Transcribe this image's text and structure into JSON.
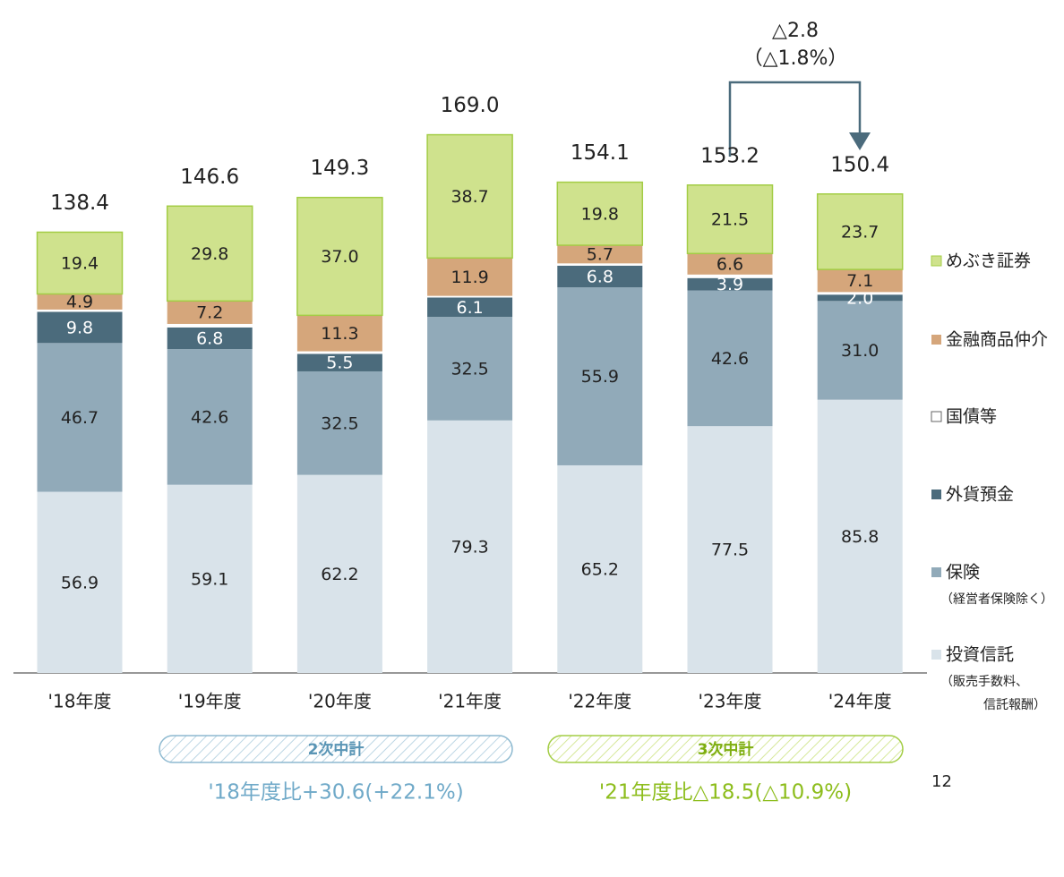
{
  "chart_data": {
    "type": "stacked_bar",
    "categories": [
      "'18年度",
      "'19年度",
      "'20年度",
      "'21年度",
      "'22年度",
      "'23年度",
      "'24年度"
    ],
    "series": [
      {
        "name": "投資信託",
        "legend_note": [
          "（販売手数料、",
          "信託報酬）"
        ],
        "color": "#d9e3ea",
        "label_color": "#222222",
        "values": [
          56.9,
          59.1,
          62.2,
          79.3,
          65.2,
          77.5,
          85.8
        ]
      },
      {
        "name": "保険",
        "legend_note": [
          "（経営者保険除く）"
        ],
        "color": "#91aab9",
        "label_color": "#222222",
        "values": [
          46.7,
          42.6,
          32.5,
          32.5,
          55.9,
          42.6,
          31.0
        ],
        "value_labels": [
          "46.7",
          "42.6",
          "32.5",
          "32.5",
          "55.9",
          "42.6",
          "31.0"
        ]
      },
      {
        "name": "外貨預金",
        "color": "#4b6b7c",
        "label_color": "#ffffff",
        "values": [
          9.8,
          6.8,
          5.5,
          6.1,
          6.8,
          3.9,
          2.0
        ],
        "value_labels": [
          "9.8",
          "6.8",
          "5.5",
          "6.1",
          "6.8",
          "3.9",
          "2.0"
        ]
      },
      {
        "name": "国債等",
        "color": "#ffffff",
        "label_color": null,
        "values": [
          0.7,
          1.1,
          0.8,
          0.5,
          0.7,
          1.1,
          0.8
        ]
      },
      {
        "name": "金融商品仲介",
        "color": "#d5a67b",
        "label_color": "#222222",
        "values": [
          4.9,
          7.2,
          11.3,
          11.9,
          5.7,
          6.6,
          7.1
        ]
      },
      {
        "name": "めぶき証券",
        "color": "#cfe28d",
        "stroke": "#a3cd45",
        "label_color": "#222222",
        "values": [
          19.4,
          29.8,
          37.0,
          38.7,
          19.8,
          21.5,
          23.7
        ],
        "value_labels": [
          "19.4",
          "29.8",
          "37.0",
          "38.7",
          "19.8",
          "21.5",
          "23.7"
        ]
      }
    ],
    "totals": {
      "values": [
        138.4,
        146.6,
        149.3,
        169.0,
        154.1,
        153.2,
        150.4
      ],
      "value_labels": [
        "138.4",
        "146.6",
        "149.3",
        "169.0",
        "154.1",
        "153.2",
        "150.4"
      ]
    },
    "ylim": [
      0,
      170
    ],
    "annotation": [
      "△2.8",
      "（△1.8%）"
    ],
    "plans": [
      {
        "label": "2次中計",
        "note": "'18年度比+30.6(+22.1%)",
        "color": "#6fa9c8"
      },
      {
        "label": "3次中計",
        "note": "'21年度比△18.5(△10.9%)",
        "color": "#8dbd1c"
      }
    ],
    "page": "12"
  }
}
